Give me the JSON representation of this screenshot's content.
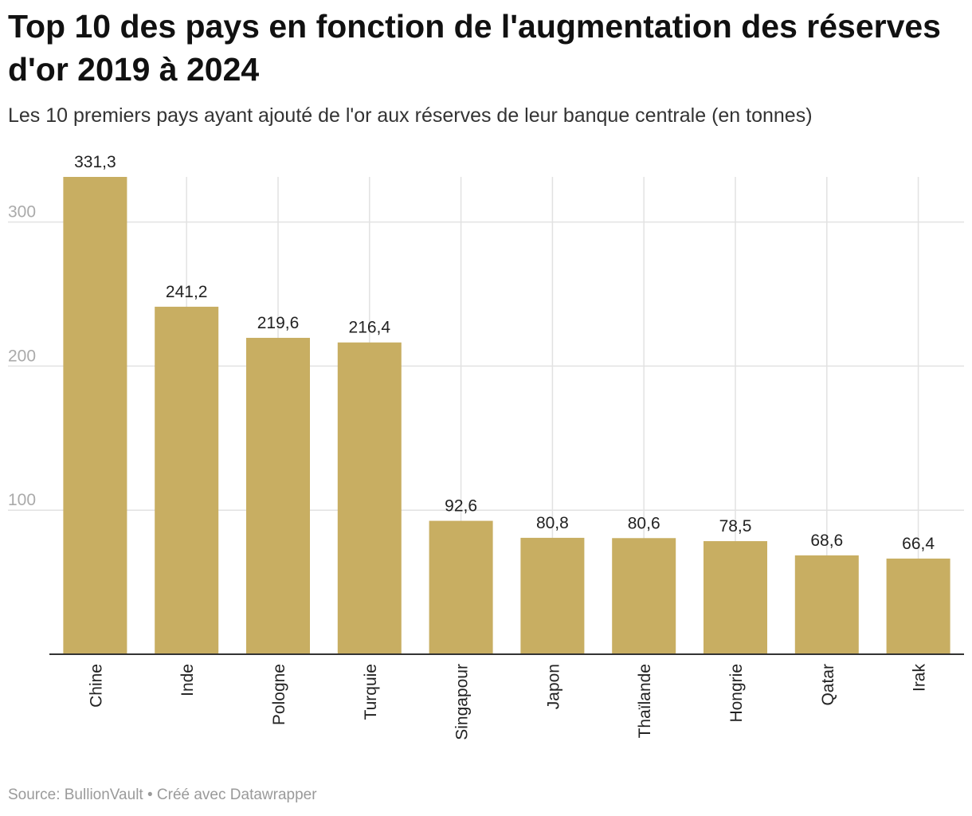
{
  "title": "Top 10 des pays en fonction de l'augmentation des réserves d'or 2019 à 2024",
  "subtitle": "Les 10 premiers pays ayant ajouté de l'or aux réserves de leur banque centrale (en tonnes)",
  "source": "Source: BullionVault • Créé avec Datawrapper",
  "colors": {
    "bar": "#c8ae62",
    "grid": "#e2e2e2",
    "axis": "#333333",
    "tick_label": "#aaaaaa",
    "label": "#222222"
  },
  "chart_data": {
    "type": "bar",
    "orientation": "vertical",
    "categories": [
      "Chine",
      "Inde",
      "Pologne",
      "Turquie",
      "Singapour",
      "Japon",
      "Thaïlande",
      "Hongrie",
      "Qatar",
      "Irak"
    ],
    "values": [
      331.3,
      241.2,
      219.6,
      216.4,
      92.6,
      80.8,
      80.6,
      78.5,
      68.6,
      66.4
    ],
    "value_labels": [
      "331,3",
      "241,2",
      "219,6",
      "216,4",
      "92,6",
      "80,8",
      "80,6",
      "78,5",
      "68,6",
      "66,4"
    ],
    "yticks": [
      100,
      200,
      300
    ],
    "ytick_labels": [
      "100",
      "200",
      "300"
    ],
    "ylim": [
      0,
      331.3
    ],
    "grid": true,
    "title": "Top 10 des pays en fonction de l'augmentation des réserves d'or 2019 à 2024",
    "xlabel": "",
    "ylabel": "tonnes"
  }
}
